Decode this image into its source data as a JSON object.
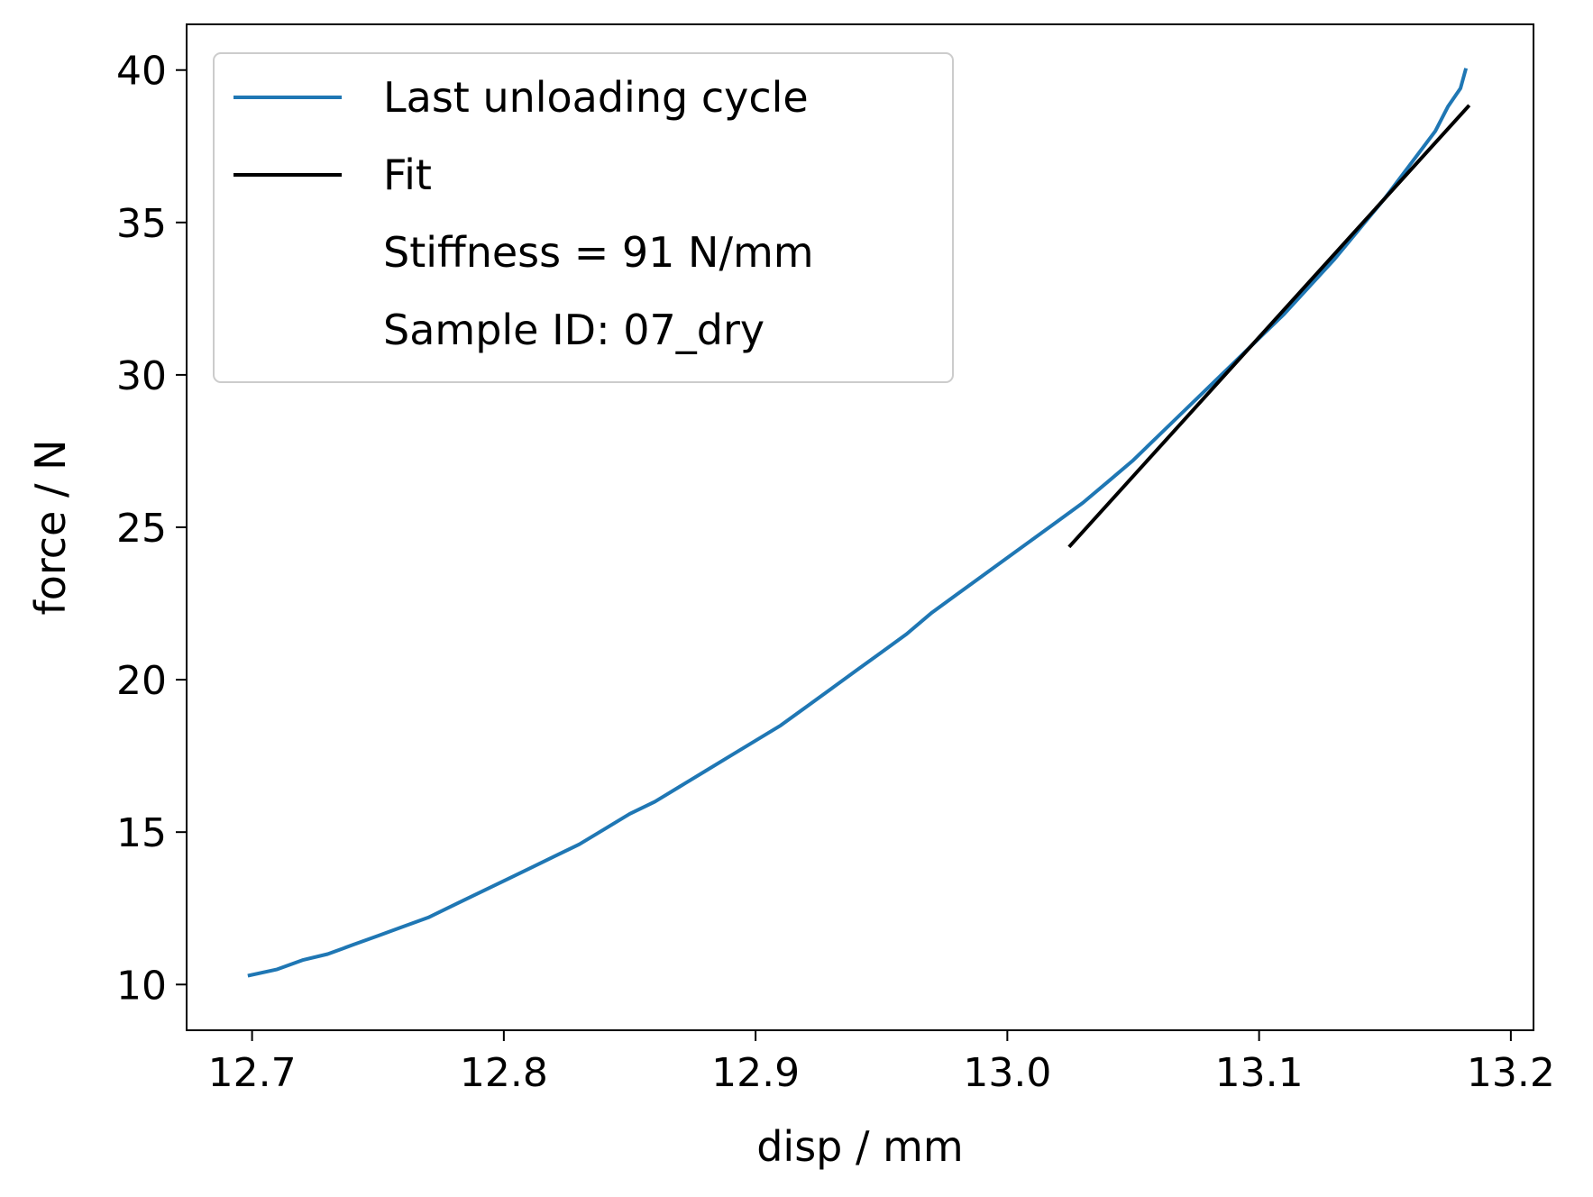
{
  "chart_data": {
    "type": "line",
    "title": "",
    "xlabel": "disp / mm",
    "ylabel": "force / N",
    "xlim": [
      12.674,
      13.209
    ],
    "ylim": [
      8.5,
      41.5
    ],
    "xticks": [
      12.7,
      12.8,
      12.9,
      13.0,
      13.1,
      13.2
    ],
    "xtick_labels": [
      "12.7",
      "12.8",
      "12.9",
      "13.0",
      "13.1",
      "13.2"
    ],
    "yticks": [
      10,
      15,
      20,
      25,
      30,
      35,
      40
    ],
    "ytick_labels": [
      "10",
      "15",
      "20",
      "25",
      "30",
      "35",
      "40"
    ],
    "grid": false,
    "legend_position": "top-left",
    "legend": [
      {
        "label": "Last unloading cycle",
        "color": "#1f77b4",
        "kind": "line"
      },
      {
        "label": "Fit",
        "color": "#000000",
        "kind": "line"
      },
      {
        "label": "Stiffness = 91 N/mm",
        "kind": "text"
      },
      {
        "label": "Sample ID: 07_dry",
        "kind": "text"
      }
    ],
    "series": [
      {
        "name": "Last unloading cycle",
        "color": "#1f77b4",
        "x": [
          12.699,
          12.71,
          12.72,
          12.73,
          12.74,
          12.75,
          12.76,
          12.77,
          12.78,
          12.79,
          12.8,
          12.81,
          12.82,
          12.83,
          12.84,
          12.85,
          12.86,
          12.87,
          12.88,
          12.89,
          12.9,
          12.91,
          12.92,
          12.93,
          12.94,
          12.95,
          12.96,
          12.97,
          12.98,
          12.99,
          13.0,
          13.01,
          13.02,
          13.03,
          13.04,
          13.05,
          13.06,
          13.07,
          13.08,
          13.09,
          13.1,
          13.11,
          13.12,
          13.13,
          13.14,
          13.15,
          13.16,
          13.17,
          13.175,
          13.18,
          13.182
        ],
        "y": [
          10.3,
          10.5,
          10.8,
          11.0,
          11.3,
          11.6,
          11.9,
          12.2,
          12.6,
          13.0,
          13.4,
          13.8,
          14.2,
          14.6,
          15.1,
          15.6,
          16.0,
          16.5,
          17.0,
          17.5,
          18.0,
          18.5,
          19.1,
          19.7,
          20.3,
          20.9,
          21.5,
          22.2,
          22.8,
          23.4,
          24.0,
          24.6,
          25.2,
          25.8,
          26.5,
          27.2,
          28.0,
          28.8,
          29.6,
          30.4,
          31.2,
          32.0,
          32.9,
          33.8,
          34.8,
          35.8,
          36.9,
          38.0,
          38.8,
          39.4,
          40.0
        ]
      },
      {
        "name": "Fit",
        "color": "#000000",
        "x": [
          13.025,
          13.183
        ],
        "y": [
          24.4,
          38.8
        ]
      }
    ]
  }
}
